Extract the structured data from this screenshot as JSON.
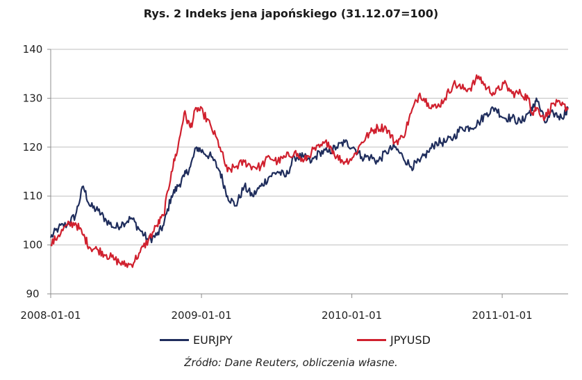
{
  "chart_data": {
    "type": "line",
    "title": "Rys. 2 Indeks jena japońskiego (31.12.07=100)",
    "xlabel": "",
    "ylabel": "",
    "x_ticks": [
      "2008-01-01",
      "2009-01-01",
      "2010-01-01",
      "2011-01-01"
    ],
    "xlim": [
      "2008-01-01",
      "2011-06-10"
    ],
    "y_ticks": [
      90,
      100,
      110,
      120,
      130,
      140
    ],
    "ylim": [
      90,
      140
    ],
    "grid": "horizontal",
    "legend_position": "bottom",
    "source": "Źródło: Dane Reuters, obliczenia własne.",
    "series": [
      {
        "name": "EURJPY",
        "color": "#1f2d5c",
        "x": [
          "2008-01-01",
          "2008-01-20",
          "2008-02-10",
          "2008-03-01",
          "2008-03-20",
          "2008-04-05",
          "2008-04-25",
          "2008-05-15",
          "2008-06-05",
          "2008-06-25",
          "2008-07-15",
          "2008-08-05",
          "2008-08-25",
          "2008-09-15",
          "2008-10-01",
          "2008-10-20",
          "2008-11-05",
          "2008-11-20",
          "2008-12-05",
          "2008-12-20",
          "2009-01-05",
          "2009-01-25",
          "2009-02-15",
          "2009-03-05",
          "2009-03-25",
          "2009-04-15",
          "2009-05-05",
          "2009-05-25",
          "2009-06-15",
          "2009-07-05",
          "2009-07-25",
          "2009-08-15",
          "2009-09-05",
          "2009-09-25",
          "2009-10-15",
          "2009-11-05",
          "2009-11-25",
          "2009-12-15",
          "2010-01-05",
          "2010-01-25",
          "2010-02-15",
          "2010-03-05",
          "2010-03-25",
          "2010-04-15",
          "2010-05-05",
          "2010-05-25",
          "2010-06-15",
          "2010-07-05",
          "2010-07-25",
          "2010-08-15",
          "2010-09-05",
          "2010-09-25",
          "2010-10-15",
          "2010-11-05",
          "2010-11-25",
          "2010-12-15",
          "2011-01-05",
          "2011-01-25",
          "2011-02-15",
          "2011-03-05",
          "2011-03-15",
          "2011-03-25",
          "2011-04-15",
          "2011-05-05",
          "2011-05-25",
          "2011-06-10"
        ],
        "values": [
          101.5,
          103.5,
          104.2,
          106,
          112,
          108,
          107,
          105,
          103.5,
          104.5,
          105.5,
          103,
          101,
          102,
          104,
          110,
          112,
          114,
          116,
          120,
          119,
          118,
          115,
          110,
          108,
          112,
          110,
          112,
          114,
          115,
          114,
          118,
          118,
          117,
          119,
          119,
          120,
          121,
          120,
          118,
          118,
          117,
          119,
          120,
          118,
          116,
          117,
          119,
          121,
          121,
          122,
          124,
          124,
          125,
          127,
          128,
          126,
          126,
          125,
          127,
          127.5,
          130,
          125,
          127,
          126,
          128
        ]
      },
      {
        "name": "JPYUSD",
        "color": "#d0202e",
        "x": [
          "2008-01-01",
          "2008-01-20",
          "2008-02-10",
          "2008-03-01",
          "2008-03-20",
          "2008-04-05",
          "2008-04-25",
          "2008-05-15",
          "2008-06-05",
          "2008-06-25",
          "2008-07-15",
          "2008-08-05",
          "2008-08-25",
          "2008-09-15",
          "2008-10-01",
          "2008-10-20",
          "2008-11-05",
          "2008-11-20",
          "2008-12-05",
          "2008-12-20",
          "2009-01-05",
          "2009-01-25",
          "2009-02-15",
          "2009-03-05",
          "2009-03-25",
          "2009-04-15",
          "2009-05-05",
          "2009-05-25",
          "2009-06-15",
          "2009-07-05",
          "2009-07-25",
          "2009-08-15",
          "2009-09-05",
          "2009-09-25",
          "2009-10-15",
          "2009-11-05",
          "2009-11-25",
          "2009-12-15",
          "2010-01-05",
          "2010-01-25",
          "2010-02-15",
          "2010-03-05",
          "2010-03-25",
          "2010-04-15",
          "2010-05-05",
          "2010-05-25",
          "2010-06-15",
          "2010-07-05",
          "2010-07-25",
          "2010-08-15",
          "2010-09-05",
          "2010-09-25",
          "2010-10-15",
          "2010-11-05",
          "2010-11-25",
          "2010-12-15",
          "2011-01-05",
          "2011-01-25",
          "2011-02-15",
          "2011-03-05",
          "2011-03-15",
          "2011-03-25",
          "2011-04-15",
          "2011-05-05",
          "2011-05-25",
          "2011-06-10"
        ],
        "values": [
          100,
          102,
          104,
          104.5,
          102,
          99.5,
          99,
          98,
          97,
          96,
          96,
          98.5,
          101,
          104,
          106,
          115,
          120,
          127,
          124,
          128,
          127,
          124,
          120,
          115,
          116,
          117,
          116,
          116,
          118,
          117,
          118,
          119,
          117,
          119,
          120,
          121,
          118,
          117,
          118,
          121,
          123,
          124,
          124,
          121,
          122,
          127,
          131,
          129,
          128,
          130,
          133,
          132,
          132,
          134.5,
          132,
          131,
          133,
          131,
          131,
          130,
          127,
          128,
          126,
          129,
          128.5,
          128
        ]
      }
    ]
  }
}
